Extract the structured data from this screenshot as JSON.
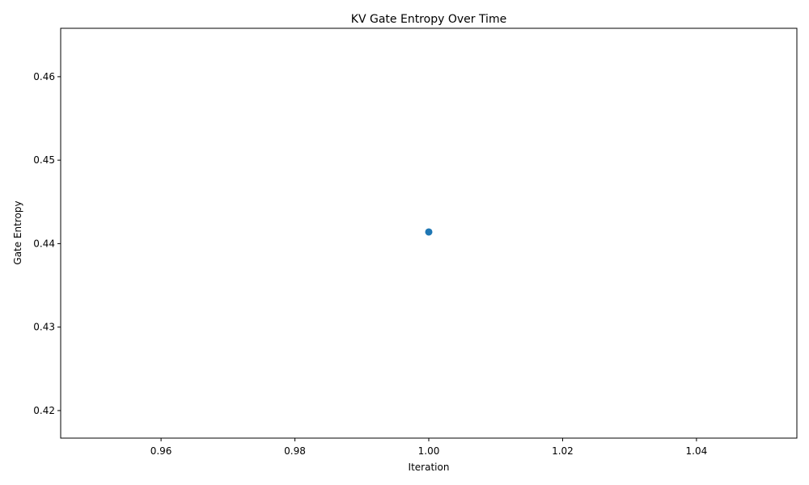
{
  "chart_data": {
    "type": "scatter",
    "title": "KV Gate Entropy Over Time",
    "xlabel": "Iteration",
    "ylabel": "Gate Entropy",
    "xlim": [
      0.945,
      1.055
    ],
    "ylim": [
      0.4167,
      0.4658
    ],
    "xticks": [
      "0.96",
      "0.98",
      "1.00",
      "1.02",
      "1.04"
    ],
    "xtick_values": [
      0.96,
      0.98,
      1.0,
      1.02,
      1.04
    ],
    "yticks": [
      "0.42",
      "0.43",
      "0.44",
      "0.45",
      "0.46"
    ],
    "ytick_values": [
      0.42,
      0.43,
      0.44,
      0.45,
      0.46
    ],
    "grid": false,
    "series": [
      {
        "color": "#1f77b4",
        "points": [
          {
            "x": 1.0,
            "y": 0.4414
          }
        ]
      }
    ]
  }
}
